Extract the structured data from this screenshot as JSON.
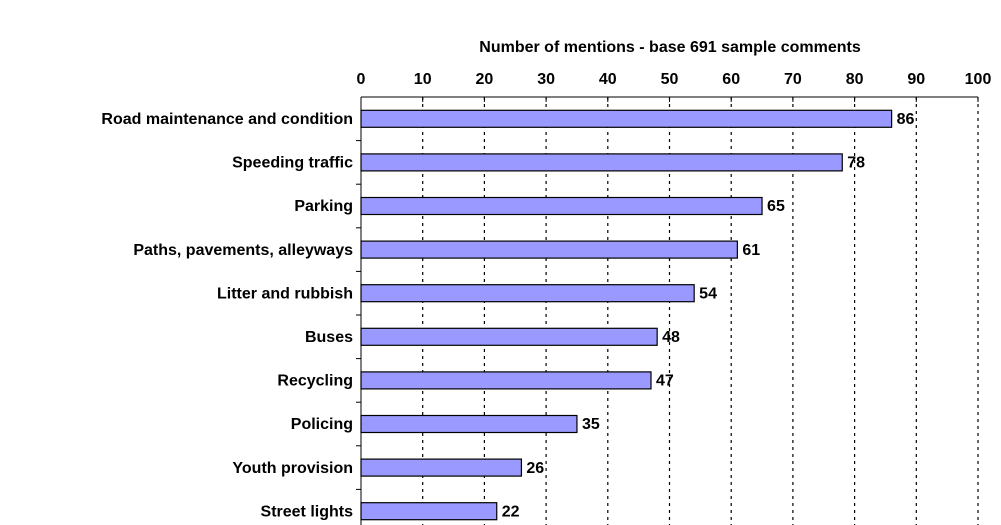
{
  "chart_data": {
    "type": "bar",
    "orientation": "horizontal",
    "title": "Number of mentions - base 691 sample comments",
    "categories": [
      "Road maintenance and condition",
      "Speeding traffic",
      "Parking",
      "Paths, pavements, alleyways",
      "Litter and rubbish",
      "Buses",
      "Recycling",
      "Policing",
      "Youth provision",
      "Street lights"
    ],
    "values": [
      86,
      78,
      65,
      61,
      54,
      48,
      47,
      35,
      26,
      22
    ],
    "color": "#9999ff",
    "xlim": [
      0,
      100
    ],
    "xticks": [
      0,
      10,
      20,
      30,
      40,
      50,
      60,
      70,
      80,
      90,
      100
    ],
    "grid": true
  }
}
